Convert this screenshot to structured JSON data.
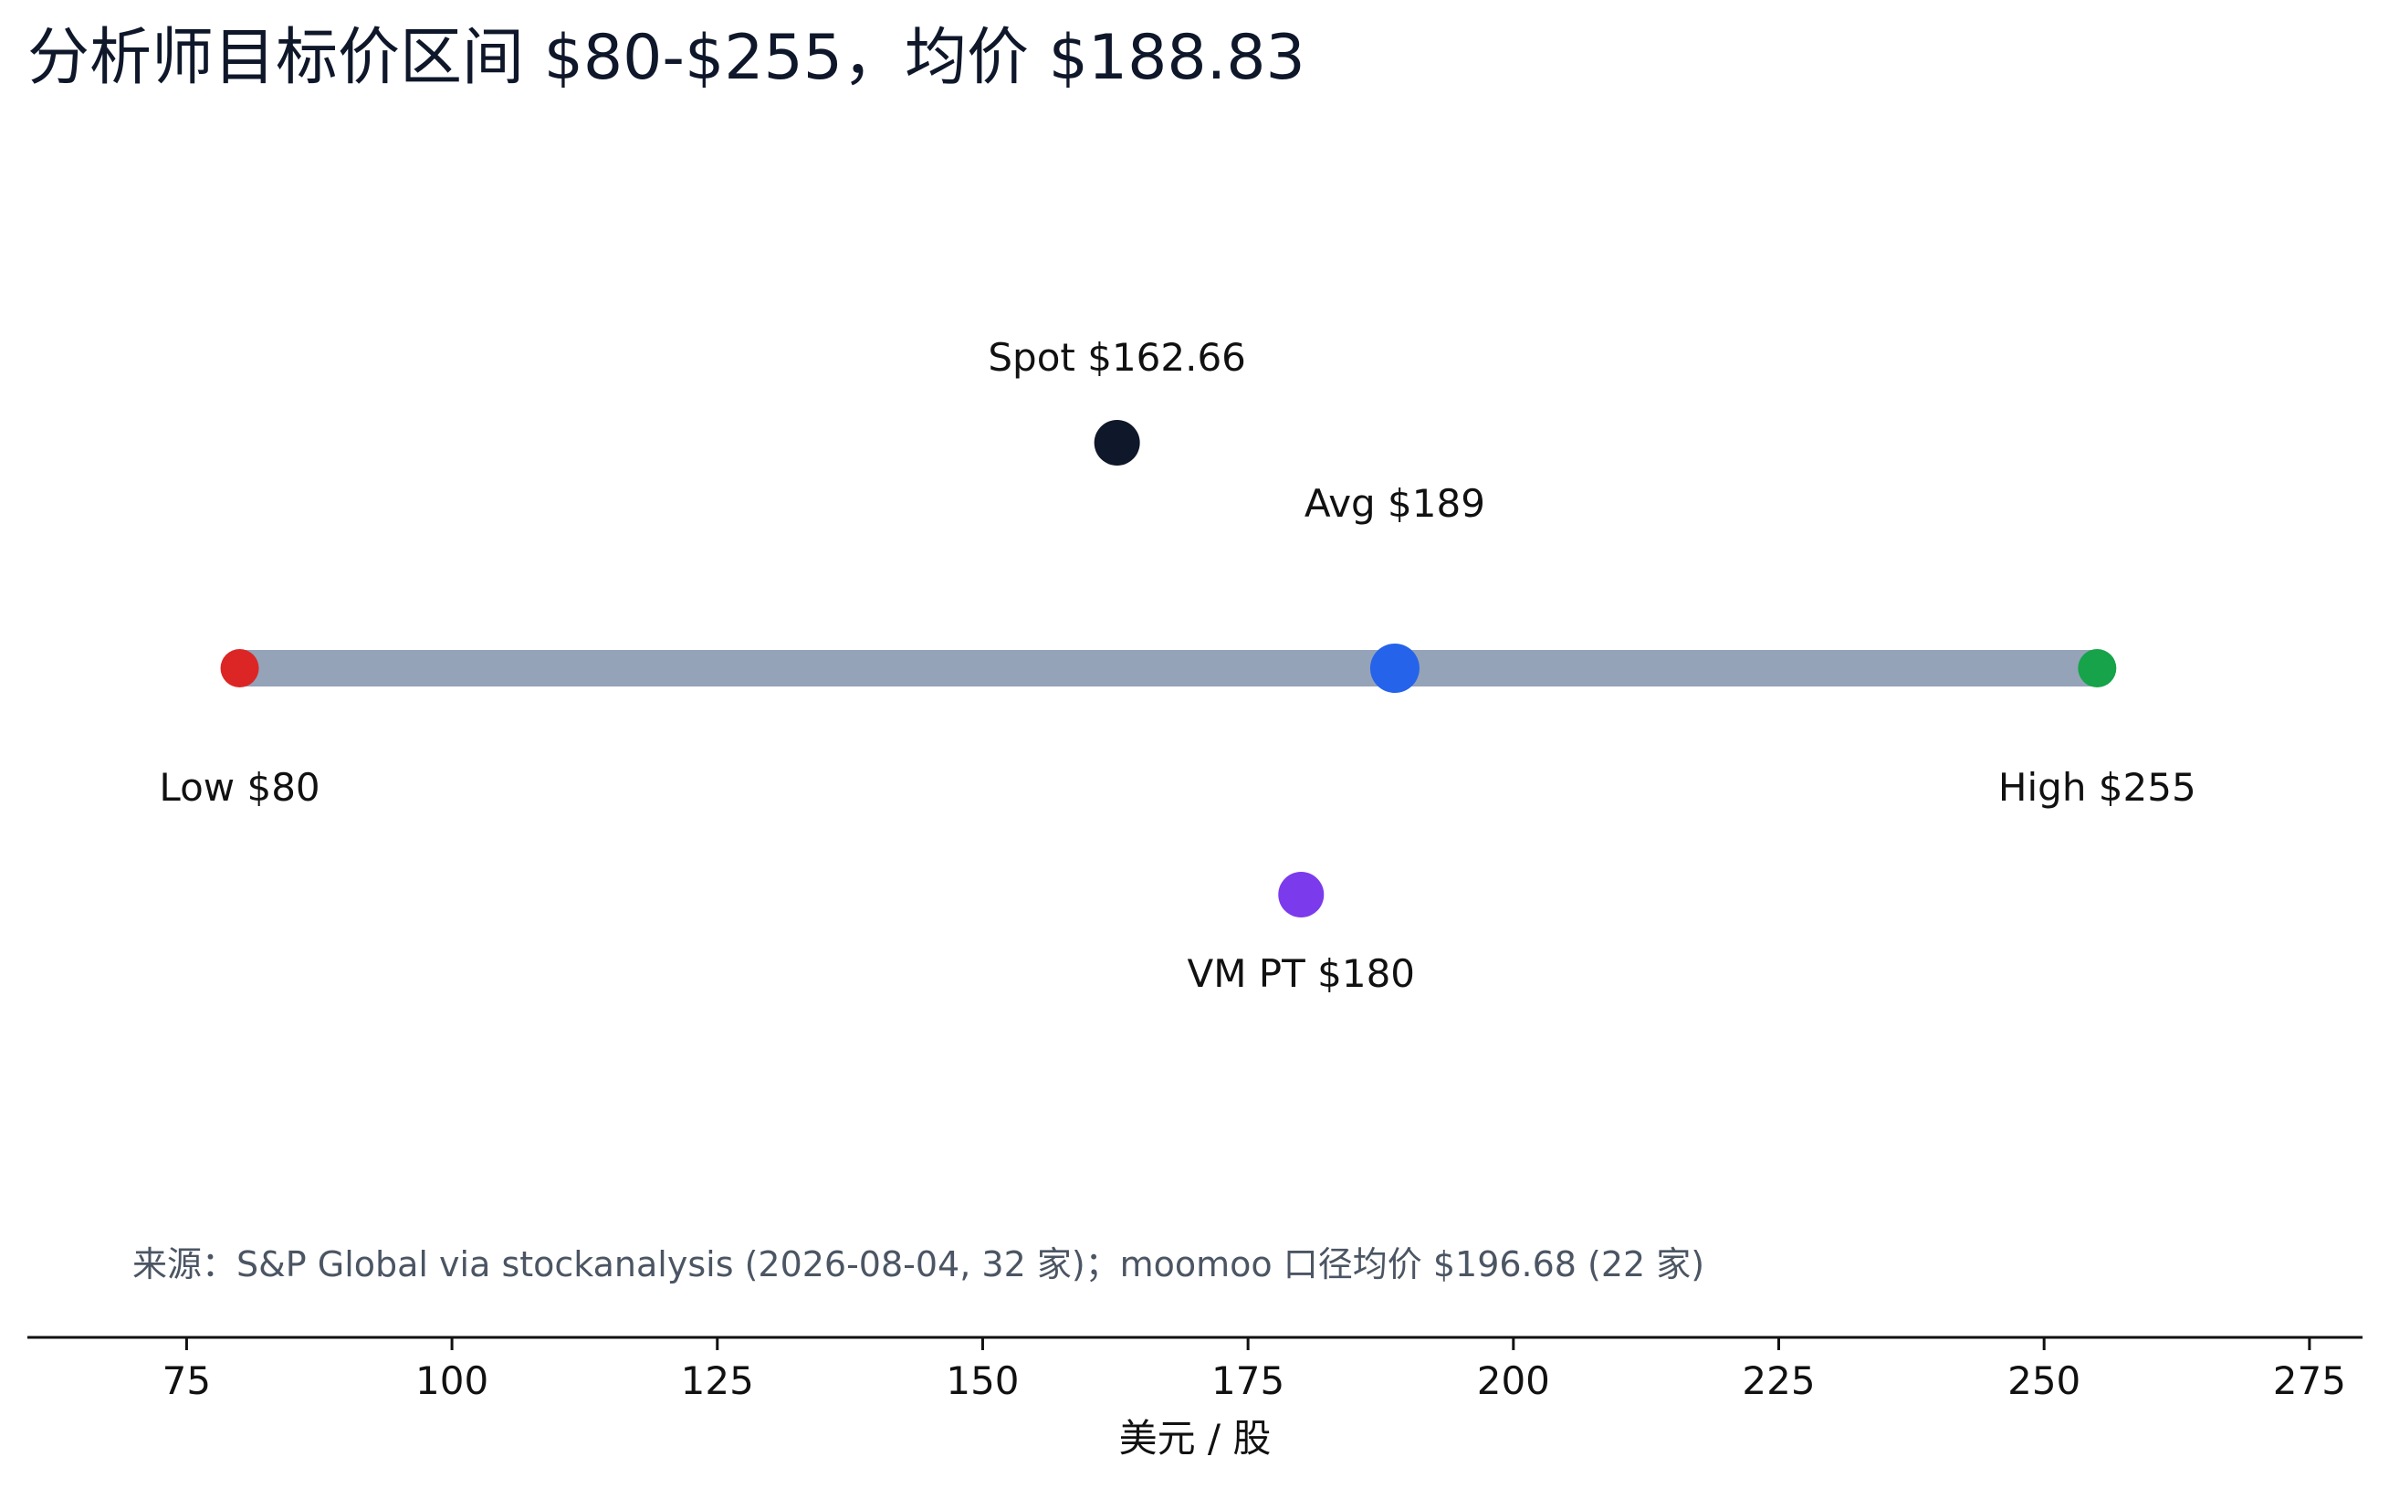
{
  "chart_data": {
    "type": "scatter",
    "title": "分析师目标价区间 $80-$255，均价 $188.83",
    "xlabel": "美元 / 股",
    "xlim": [
      60,
      280
    ],
    "xticks": [
      75,
      100,
      125,
      150,
      175,
      200,
      225,
      250,
      275
    ],
    "range_bar": {
      "low": 80,
      "high": 255,
      "color": "#94a3b8"
    },
    "markers": [
      {
        "key": "spot",
        "x": 162.66,
        "label": "Spot $162.66",
        "color": "#0f172a",
        "row": "upper",
        "label_pos": "above"
      },
      {
        "key": "avg",
        "x": 188.83,
        "label": "Avg $189",
        "color": "#2563eb",
        "row": "bar",
        "label_pos": "above"
      },
      {
        "key": "low",
        "x": 80,
        "label": "Low $80",
        "color": "#dc2626",
        "row": "bar",
        "label_pos": "below"
      },
      {
        "key": "high",
        "x": 255,
        "label": "High $255",
        "color": "#16a34a",
        "row": "bar",
        "label_pos": "below"
      },
      {
        "key": "vm-pt",
        "x": 180,
        "label": "VM PT $180",
        "color": "#7c3aed",
        "row": "lower",
        "label_pos": "below"
      }
    ],
    "annotation": "来源：S&P Global via stockanalysis (2026-08-04, 32 家)；moomoo 口径均价 $196.68 (22 家)",
    "grid": false
  }
}
